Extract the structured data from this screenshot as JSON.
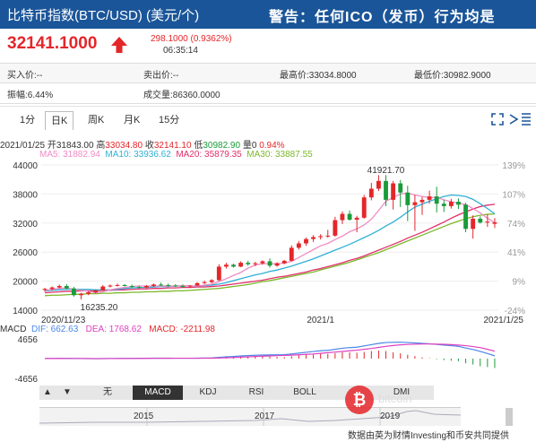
{
  "header": {
    "title": "比特币指数(BTC/USD) (美元/个)",
    "warning": "警告：任何ICO（发币）行为均是"
  },
  "quote": {
    "price": "32141.1000",
    "change": "298.1000 (0.9362%)",
    "time": "06:35:14",
    "colors": {
      "up": "#e4262a"
    }
  },
  "info": {
    "buy": "买入价:--",
    "sell": "卖出价:--",
    "high": "最高价:33034.8000",
    "low": "最低价:30982.9000",
    "amplitude": "振幅:6.44%",
    "volume": "成交量:86360.0000"
  },
  "tabs": [
    {
      "label": "1分",
      "active": false
    },
    {
      "label": "日K",
      "active": true
    },
    {
      "label": "周K",
      "active": false
    },
    {
      "label": "月K",
      "active": false
    },
    {
      "label": "15分",
      "active": false
    }
  ],
  "toolbar_icons": [
    "fullscreen-icon",
    "settings-icon",
    "expand-icon"
  ],
  "ohlc": {
    "date": "2021/01/25",
    "open_label": "开",
    "open": "31843.00",
    "high_label": "高",
    "high": "33034.80",
    "close_label": "收",
    "close": "32141.10",
    "low_label": "低",
    "low": "30982.90",
    "vol_label": "量",
    "vol": "0",
    "pct": "0.94%"
  },
  "ma": [
    {
      "label": "MA5: 31882.94",
      "color": "#f08cc5"
    },
    {
      "label": "MA10: 33936.62",
      "color": "#2fb0d5"
    },
    {
      "label": "MA20: 35879.35",
      "color": "#e0306a"
    },
    {
      "label": "MA30: 33887.55",
      "color": "#7cb82a"
    }
  ],
  "chart_data": [
    {
      "type": "candlestick",
      "title": "",
      "ylim": [
        14000,
        44000
      ],
      "y_ticks": [
        "44000",
        "38000",
        "32000",
        "26000",
        "20000",
        "14000"
      ],
      "right_ticks": [
        "139%",
        "107%",
        "74%",
        "41%",
        "9%",
        "-24%"
      ],
      "x_ticks": [
        "2020/11/23",
        "2021/1",
        "2021/1/25"
      ],
      "annotations": [
        "41921.70",
        "16235.20"
      ],
      "candles": [
        [
          18200,
          18600,
          17800,
          18400
        ],
        [
          18400,
          18900,
          18100,
          18700
        ],
        [
          18700,
          19300,
          18500,
          19000
        ],
        [
          19000,
          19400,
          18300,
          18500
        ],
        [
          18500,
          18800,
          16800,
          17100
        ],
        [
          17100,
          17600,
          16235,
          17400
        ],
        [
          17400,
          17900,
          17100,
          17700
        ],
        [
          17700,
          18300,
          17500,
          18100
        ],
        [
          18100,
          19200,
          18000,
          18900
        ],
        [
          18900,
          19300,
          18700,
          19100
        ],
        [
          19100,
          19500,
          18900,
          19200
        ],
        [
          19200,
          19400,
          18900,
          19000
        ],
        [
          19000,
          19300,
          18600,
          18800
        ],
        [
          18800,
          19100,
          18400,
          18700
        ],
        [
          18700,
          19200,
          18500,
          19000
        ],
        [
          19000,
          19500,
          18800,
          19300
        ],
        [
          19300,
          19700,
          19000,
          19200
        ],
        [
          19200,
          19500,
          18900,
          19100
        ],
        [
          19100,
          19400,
          18800,
          19000
        ],
        [
          19000,
          19300,
          18700,
          18900
        ],
        [
          18900,
          19200,
          18600,
          19100
        ],
        [
          19100,
          19800,
          19000,
          19600
        ],
        [
          19600,
          20100,
          19400,
          19800
        ],
        [
          19800,
          20400,
          19600,
          20200
        ],
        [
          20200,
          23500,
          20000,
          23000
        ],
        [
          23000,
          23800,
          22600,
          23400
        ],
        [
          23400,
          23600,
          22800,
          23000
        ],
        [
          23000,
          24100,
          22900,
          23800
        ],
        [
          23800,
          24200,
          23200,
          23500
        ],
        [
          23500,
          24000,
          23100,
          23700
        ],
        [
          23700,
          24300,
          23400,
          24100
        ],
        [
          24100,
          24700,
          22800,
          23200
        ],
        [
          23200,
          23900,
          23000,
          23700
        ],
        [
          23700,
          24400,
          23500,
          24200
        ],
        [
          24200,
          27400,
          24100,
          26900
        ],
        [
          26900,
          28300,
          26500,
          27800
        ],
        [
          27800,
          29000,
          27300,
          28700
        ],
        [
          28700,
          29500,
          28100,
          29100
        ],
        [
          29100,
          29700,
          28600,
          29300
        ],
        [
          29300,
          30600,
          29000,
          29400
        ],
        [
          29400,
          33300,
          29200,
          32600
        ],
        [
          32600,
          34400,
          31800,
          33900
        ],
        [
          33900,
          34600,
          32500,
          32700
        ],
        [
          32700,
          33500,
          30100,
          33100
        ],
        [
          33100,
          37800,
          32900,
          37300
        ],
        [
          37300,
          40300,
          36700,
          39100
        ],
        [
          39100,
          41900,
          38600,
          40700
        ],
        [
          40700,
          41921,
          35500,
          36800
        ],
        [
          36800,
          40700,
          34800,
          40200
        ],
        [
          40200,
          40900,
          35300,
          38300
        ],
        [
          38300,
          39700,
          32400,
          35700
        ],
        [
          35700,
          37800,
          30400,
          36300
        ],
        [
          36300,
          37400,
          33700,
          36800
        ],
        [
          36800,
          38700,
          36000,
          37500
        ],
        [
          37500,
          39500,
          34200,
          36000
        ],
        [
          36000,
          36800,
          34300,
          35500
        ],
        [
          35500,
          37000,
          35000,
          36400
        ],
        [
          36400,
          37100,
          34900,
          35800
        ],
        [
          35800,
          36200,
          30100,
          30800
        ],
        [
          30800,
          33600,
          28800,
          32900
        ],
        [
          32900,
          33400,
          31900,
          32100
        ],
        [
          32100,
          33800,
          31200,
          32300
        ],
        [
          31843,
          33034.8,
          30982.9,
          32141.1
        ]
      ],
      "ma5": [
        18100,
        18300,
        18500,
        18600,
        18300,
        18100,
        17900,
        17600,
        17800,
        18200,
        18500,
        18700,
        18900,
        19000,
        19000,
        19000,
        19000,
        19000,
        19000,
        19100,
        19000,
        19000,
        19200,
        19400,
        19900,
        20500,
        21200,
        21800,
        22700,
        23300,
        23600,
        23600,
        23600,
        23700,
        24100,
        24900,
        25700,
        26500,
        27300,
        27800,
        28600,
        29300,
        30200,
        30800,
        31600,
        32800,
        34600,
        36500,
        37300,
        38000,
        38200,
        37800,
        37500,
        37300,
        37300,
        36800,
        36400,
        36100,
        35800,
        35000,
        34100,
        33000,
        32100
      ],
      "ma10": [
        18000,
        18100,
        18200,
        18300,
        18300,
        18300,
        18300,
        18200,
        18200,
        18200,
        18300,
        18500,
        18600,
        18700,
        18700,
        18800,
        18900,
        18900,
        19000,
        19000,
        19000,
        19000,
        19100,
        19200,
        19400,
        19700,
        20100,
        20500,
        20900,
        21300,
        21600,
        22000,
        22300,
        22700,
        23100,
        23600,
        24100,
        24600,
        25200,
        25800,
        26400,
        27000,
        27600,
        28300,
        29000,
        29700,
        30500,
        31400,
        32200,
        33200,
        34300,
        35300,
        35900,
        36500,
        37000,
        37500,
        37800,
        37700,
        37500,
        36900,
        36000,
        35000,
        33936
      ],
      "ma20": [
        17600,
        17700,
        17800,
        17900,
        17900,
        18000,
        18000,
        18000,
        18100,
        18100,
        18200,
        18200,
        18300,
        18400,
        18400,
        18500,
        18500,
        18600,
        18600,
        18700,
        18700,
        18800,
        18800,
        18900,
        19000,
        19200,
        19400,
        19600,
        19800,
        20000,
        20200,
        20500,
        20800,
        21000,
        21300,
        21600,
        21900,
        22300,
        22600,
        23000,
        23400,
        23800,
        24300,
        24700,
        25200,
        25800,
        26400,
        27000,
        27600,
        28200,
        28900,
        29500,
        30100,
        30800,
        31500,
        32200,
        33000,
        33700,
        34300,
        34900,
        35400,
        35700,
        35879
      ],
      "ma30": [
        17000,
        17100,
        17100,
        17200,
        17300,
        17300,
        17400,
        17400,
        17500,
        17500,
        17600,
        17600,
        17700,
        17700,
        17800,
        17800,
        17900,
        17900,
        18000,
        18000,
        18100,
        18200,
        18300,
        18400,
        18500,
        18700,
        18900,
        19100,
        19300,
        19600,
        19900,
        20100,
        20400,
        20700,
        21000,
        21300,
        21600,
        21900,
        22300,
        22700,
        23100,
        23500,
        23900,
        24400,
        24900,
        25400,
        25900,
        26500,
        27100,
        27700,
        28300,
        28900,
        29500,
        30100,
        30700,
        31300,
        31900,
        32400,
        32900,
        33300,
        33600,
        33800,
        33887
      ]
    },
    {
      "type": "bar",
      "title": "MACD",
      "ylim": [
        -4656,
        4656
      ],
      "y_ticks": [
        "4656",
        "-4656"
      ],
      "series": [
        {
          "name": "DIF: 662.63",
          "color": "#4a86e8"
        },
        {
          "name": "DEA: 1768.62",
          "color": "#e040c0"
        },
        {
          "name": "MACD: -2211.98",
          "color": "#e4262a"
        }
      ],
      "dif": [
        20,
        40,
        60,
        70,
        40,
        10,
        -10,
        -20,
        0,
        20,
        40,
        60,
        70,
        80,
        90,
        100,
        100,
        100,
        90,
        90,
        90,
        100,
        130,
        170,
        300,
        420,
        520,
        640,
        730,
        800,
        860,
        880,
        900,
        930,
        1100,
        1300,
        1500,
        1680,
        1850,
        1950,
        2200,
        2450,
        2600,
        2700,
        3000,
        3300,
        3600,
        3800,
        3850,
        3880,
        3800,
        3700,
        3600,
        3500,
        3350,
        3200,
        3050,
        2900,
        2500,
        2150,
        1700,
        1200,
        662
      ],
      "dea": [
        20,
        25,
        30,
        40,
        40,
        35,
        25,
        15,
        15,
        15,
        20,
        30,
        40,
        50,
        60,
        70,
        80,
        85,
        90,
        90,
        90,
        90,
        100,
        110,
        150,
        200,
        260,
        340,
        420,
        500,
        580,
        640,
        700,
        750,
        820,
        900,
        1000,
        1100,
        1250,
        1400,
        1550,
        1700,
        1850,
        2000,
        2200,
        2400,
        2650,
        2900,
        3100,
        3250,
        3350,
        3400,
        3450,
        3450,
        3420,
        3380,
        3300,
        3200,
        3050,
        2850,
        2600,
        2200,
        1768
      ]
    }
  ],
  "macd_row": {
    "title": "MACD",
    "dif": "DIF: 662.63",
    "dea": "DEA: 1768.62",
    "macd": "MACD: -2211.98"
  },
  "indicator_buttons": [
    {
      "label": "▲",
      "active": false
    },
    {
      "label": "▼",
      "active": false
    },
    {
      "label": "无",
      "active": false
    },
    {
      "label": "MACD",
      "active": true
    },
    {
      "label": "KDJ",
      "active": false
    },
    {
      "label": "RSI",
      "active": false
    },
    {
      "label": "BOLL",
      "active": false
    },
    {
      "label": "DMI",
      "active": false
    }
  ],
  "years": [
    "2015",
    "2017",
    "2019"
  ],
  "source": "数据由英为财情Investing和币安共同提供",
  "watermark": "bitcoin"
}
